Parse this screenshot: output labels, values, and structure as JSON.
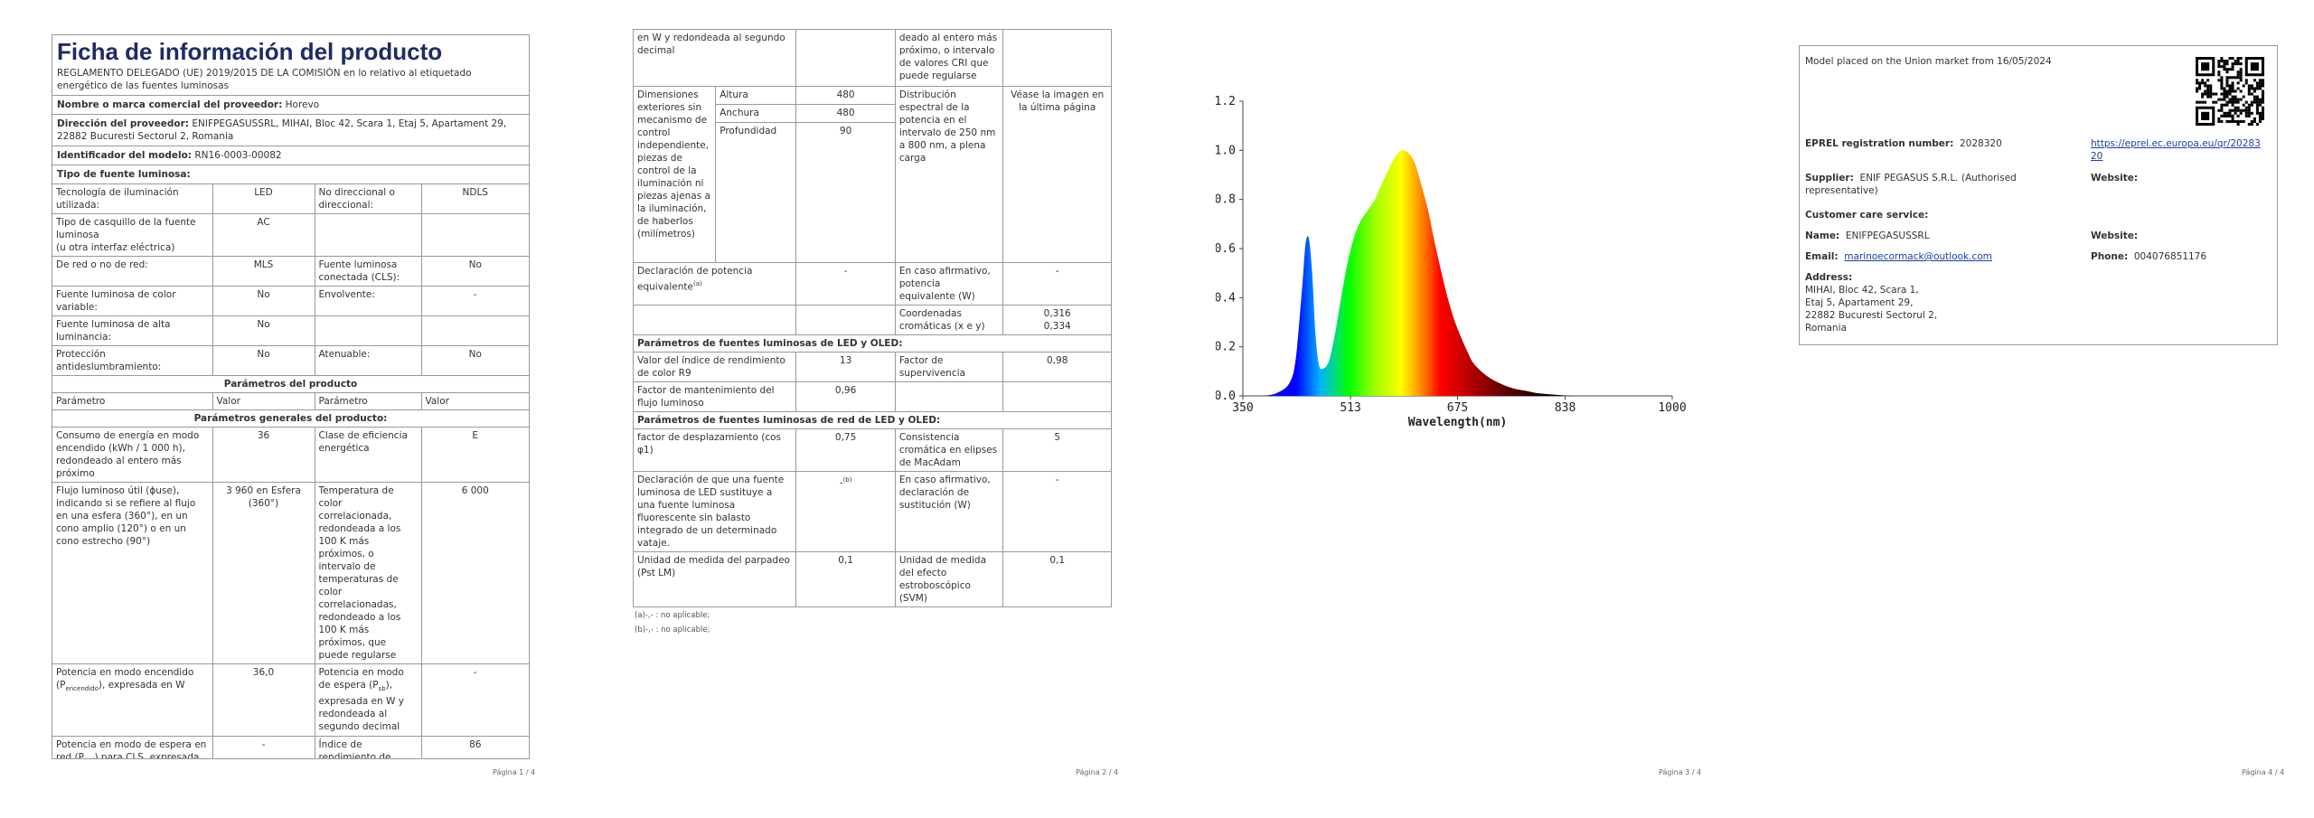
{
  "page1": {
    "title": "Ficha de información del producto",
    "regulation": "REGLAMENTO DELEGADO (UE) 2019/2015 DE LA COMISIÓN en lo relativo al etiquetado energético de las fuentes luminosas",
    "supplier_name_label": "Nombre o marca comercial del proveedor:",
    "supplier_name_value": "Horevo",
    "supplier_addr_label": "Dirección del proveedor:",
    "supplier_addr_value": "ENIFPEGASUSSRL, MIHAI, Bloc 42, Scara 1, Etaj 5, Apartament 29, 22882 Bucuresti Sectorul 2, Romania",
    "model_label": "Identificador del modelo:",
    "model_value": "RN16-0003-00082",
    "source_type_label": "Tipo de fuente luminosa:",
    "r_tech_l": "Tecnología de iluminación utilizada:",
    "r_tech_v": "LED",
    "r_ndir_l": "No direccional o direccional:",
    "r_ndir_v": "NDLS",
    "r_cap_l": "Tipo de casquillo de la fuente luminosa",
    "r_cap_l2": "(u otra interfaz eléctrica)",
    "r_cap_v": "AC",
    "r_mains_l": "De red o no de red:",
    "r_mains_v": "MLS",
    "r_ccl_l": "Fuente luminosa conectada (CLS):",
    "r_ccl_v": "No",
    "r_var_l": "Fuente luminosa de color variable:",
    "r_var_v": "No",
    "r_env_l": "Envolvente:",
    "r_env_v": "-",
    "r_hl_l": "Fuente luminosa de alta luminancia:",
    "r_hl_v": "No",
    "r_glare_l": "Protección antideslumbramiento:",
    "r_glare_v": "No",
    "r_dim_l": "Atenuable:",
    "r_dim_v": "No",
    "product_params": "Parámetros del producto",
    "col_param": "Parámetro",
    "col_value": "Valor",
    "general_params": "Parámetros generales del producto:",
    "g1_l": "Consumo de energía en modo encendido (kWh / 1 000 h), redondeado al entero más próximo",
    "g1_v": "36",
    "g1_r": "Clase de eficiencia energética",
    "g1_rv": "E",
    "g2_l": "Flujo luminoso útil (ɸuse), indicando si se refiere al flujo en una esfera (360°), en un cono amplio (120°) o en un cono estrecho (90°)",
    "g2_v": "3 960 en Esfera (360°)",
    "g2_r": "Temperatura de color correlacionada, redondeada a los 100 K más próximos, o intervalo de temperaturas de color correlacionadas, redondeado a los 100 K más próximos, que puede regularse",
    "g2_rv": "6 000",
    "g3_l": "Potencia en modo encendido (P",
    "g3_sub": "encendido",
    "g3_l2": "), expresada en W",
    "g3_v": "36,0",
    "g3_r": "Potencia en modo de espera (P",
    "g3_rsub": "sb",
    "g3_r2": "), expresada en W y redondeada al segundo decimal",
    "g3_rv": "-",
    "g4_l": "Potencia en modo de espera en red (P",
    "g4_sub": "red",
    "g4_l2": ") para CLS, expresada",
    "g4_v": "-",
    "g4_r": "Índice de rendimiento de color, redon-",
    "g4_rv": "86",
    "page_no": "Página 1 / 4"
  },
  "page2": {
    "c1": "en W y redondeada al segundo decimal",
    "c1_r": "deado al entero más próximo, o intervalo de valores CRI que puede regularse",
    "dim_l": "Dimensiones exteriores sin mecanismo de control independiente, piezas de control de la iluminación ni piezas ajenas a la iluminación, de haberlos (milímetros)",
    "h_l": "Altura",
    "h_v": "480",
    "w_l": "Anchura",
    "w_v": "480",
    "d_l": "Profundidad",
    "d_v": "90",
    "spd_l": "Distribución espectral de la potencia en el intervalo de 250 nm a 800 nm, a plena carga",
    "spd_v": "Véase la imagen en la última página",
    "eq_l": "Declaración de potencia equivalente",
    "eq_sup": "(a)",
    "eq_v": "-",
    "eq_r": "En caso afirmativo, potencia equivalente (W)",
    "eq_rv": "-",
    "xy_r": "Coordenadas cromáticas (x e y)",
    "xy_v1": "0,316",
    "xy_v2": "0,334",
    "led_hdr": "Parámetros de fuentes luminosas de LED y OLED:",
    "r9_l": "Valor del índice de rendimiento de color R9",
    "r9_v": "13",
    "surv_l": "Factor de supervivencia",
    "surv_v": "0,98",
    "maint_l": "Factor de mantenimiento del flujo luminoso",
    "maint_v": "0,96",
    "mled_hdr": "Parámetros de fuentes luminosas de red de LED y OLED:",
    "cos_l": "factor de desplazamiento (cos φ1)",
    "cos_v": "0,75",
    "mac_l": "Consistencia cromática en elipses de MacAdam",
    "mac_v": "5",
    "rep_l": "Declaración de que una fuente luminosa de LED sustituye a una fuente luminosa fluorescente sin balasto integrado de un determinado vataje.",
    "rep_v": "-",
    "rep_sup": "(b)",
    "rep_r": "En caso afirmativo, declaración de sustitución (W)",
    "rep_rv": "-",
    "flk_l": "Unidad de medida del parpadeo (Pst LM)",
    "flk_v": "0,1",
    "svm_l": "Unidad de medida del efecto estroboscópico (SVM)",
    "svm_v": "0,1",
    "fn_a": "(a)-,- : no aplicable;",
    "fn_b": "(b)-,- : no aplicable;",
    "page_no": "Página 2 / 4"
  },
  "page3": {
    "page_no": "Página 3 / 4"
  },
  "chart_data": {
    "type": "line",
    "title": "",
    "xlabel": "Wavelength(nm)",
    "ylabel": "",
    "xlim": [
      350,
      1000
    ],
    "ylim": [
      0,
      1.2
    ],
    "x_ticks": [
      "350",
      "513",
      "675",
      "838",
      "1000"
    ],
    "y_ticks": [
      "0.0",
      "0.2",
      "0.4",
      "0.6",
      "0.8",
      "1.0",
      "1.2"
    ],
    "grid": false,
    "fill": "visible-spectrum gradient",
    "series": [
      {
        "x": [
          380,
          400,
          420,
          430,
          440,
          445,
          450,
          455,
          460,
          465,
          470,
          480,
          490,
          500,
          510,
          520,
          530,
          540,
          550,
          560,
          570,
          580,
          590,
          600,
          610,
          620,
          630,
          640,
          650,
          660,
          670,
          680,
          690,
          700,
          720,
          740,
          760,
          780,
          800,
          850,
          900,
          1000
        ],
        "values": [
          0.0,
          0.01,
          0.05,
          0.15,
          0.45,
          0.62,
          0.64,
          0.5,
          0.25,
          0.13,
          0.11,
          0.14,
          0.26,
          0.42,
          0.56,
          0.66,
          0.72,
          0.76,
          0.8,
          0.86,
          0.92,
          0.97,
          1.0,
          0.99,
          0.95,
          0.86,
          0.76,
          0.63,
          0.51,
          0.4,
          0.31,
          0.24,
          0.18,
          0.13,
          0.08,
          0.05,
          0.03,
          0.02,
          0.01,
          0.0,
          0.0,
          0.0
        ]
      }
    ]
  },
  "page4": {
    "placed": "Model placed on the Union market from 16/05/2024",
    "eprel_l": "EPREL registration number:",
    "eprel_v": "2028320",
    "eprel_link": "https://eprel.ec.europa.eu/qr/2028320",
    "supplier_l": "Supplier:",
    "supplier_v": "ENIF PEGASUS S.R.L. (Authorised representative)",
    "website_l": "Website:",
    "care_l": "Customer care service:",
    "name_l": "Name:",
    "name_v": "ENIFPEGASUSSRL",
    "website2_l": "Website:",
    "email_l": "Email:",
    "email_v": "marinoecormack@outlook.com",
    "phone_l": "Phone:",
    "phone_v": "004076851176",
    "addr_l": "Address:",
    "addr_1": "MIHAI, Bloc 42, Scara 1,",
    "addr_2": "Etaj 5, Apartament 29,",
    "addr_3": "22882 Bucuresti Sectorul 2,",
    "addr_4": "Romania",
    "page_no": "Página 4 / 4"
  }
}
